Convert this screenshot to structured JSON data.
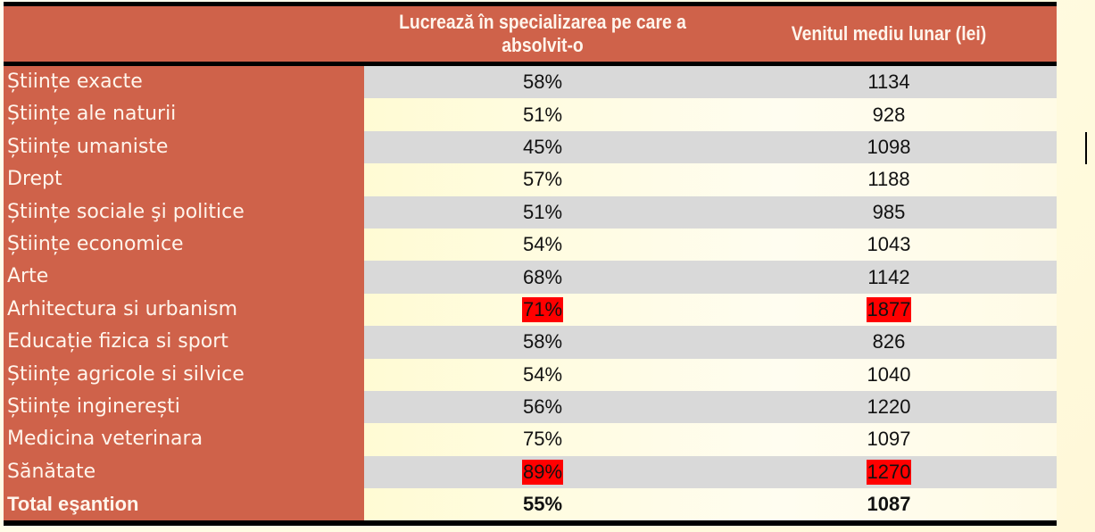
{
  "table": {
    "headers": {
      "category": "",
      "col1": "Lucrează în specializarea pe care a absolvit-o",
      "col2": "Venitul mediu lunar (lei)"
    },
    "rows": [
      {
        "label": "Științe exacte",
        "pct": "58%",
        "income": "1134"
      },
      {
        "label": "Științe ale naturii",
        "pct": "51%",
        "income": "928"
      },
      {
        "label": "Științe umaniste",
        "pct": "45%",
        "income": "1098"
      },
      {
        "label": "Drept",
        "pct": "57%",
        "income": "1188"
      },
      {
        "label": "Științe sociale şi politice",
        "pct": "51%",
        "income": "985"
      },
      {
        "label": "Științe economice",
        "pct": "54%",
        "income": "1043"
      },
      {
        "label": "Arte",
        "pct": "68%",
        "income": "1142"
      },
      {
        "label": "Arhitectura si urbanism",
        "pct": "71%",
        "income": "1877",
        "highlight": true
      },
      {
        "label": "Educație fizica si sport",
        "pct": "58%",
        "income": "826"
      },
      {
        "label": "Științe agricole  si silvice",
        "pct": "54%",
        "income": "1040"
      },
      {
        "label": "Științe inginerești",
        "pct": "56%",
        "income": "1220"
      },
      {
        "label": "Medicina veterinara",
        "pct": "75%",
        "income": "1097"
      },
      {
        "label": "Sănătate",
        "pct": "89%",
        "income": "1270",
        "highlight": true
      },
      {
        "label": "Total eşantion",
        "pct": "55%",
        "income": "1087",
        "total": true
      }
    ]
  },
  "colors": {
    "header_bg": "#cf624a",
    "label_bg": "#cf624a",
    "row_gray": "#d9d9d9",
    "row_cream": "#fffbd4",
    "highlight": "#ff0000"
  }
}
